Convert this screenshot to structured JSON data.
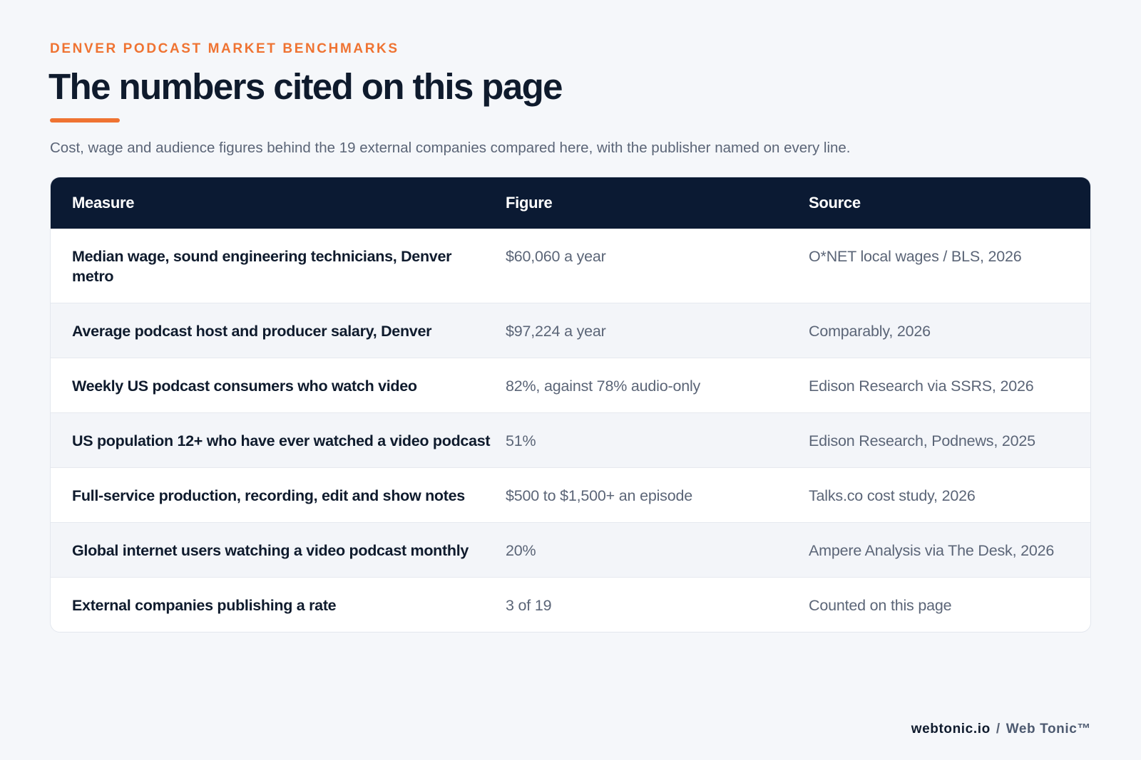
{
  "header": {
    "eyebrow": "DENVER PODCAST MARKET BENCHMARKS",
    "title": "The numbers cited on this page",
    "subtitle": "Cost, wage and audience figures behind the 19 external companies compared here, with the publisher named on every line."
  },
  "table": {
    "columns": [
      "Measure",
      "Figure",
      "Source"
    ],
    "rows": [
      {
        "measure": "Median wage, sound engineering technicians, Denver metro",
        "figure": "$60,060 a year",
        "source": "O*NET local wages / BLS, 2026"
      },
      {
        "measure": "Average podcast host and producer salary, Denver",
        "figure": "$97,224 a year",
        "source": "Comparably, 2026"
      },
      {
        "measure": "Weekly US podcast consumers who watch video",
        "figure": "82%, against 78% audio-only",
        "source": "Edison Research via SSRS, 2026"
      },
      {
        "measure": "US population 12+ who have ever watched a video podcast",
        "figure": "51%",
        "source": "Edison Research, Podnews, 2025"
      },
      {
        "measure": "Full-service production, recording, edit and show notes",
        "figure": "$500 to $1,500+ an episode",
        "source": "Talks.co cost study, 2026"
      },
      {
        "measure": "Global internet users watching a video podcast monthly",
        "figure": "20%",
        "source": "Ampere Analysis via The Desk, 2026"
      },
      {
        "measure": "External companies publishing a rate",
        "figure": "3 of 19",
        "source": "Counted on this page"
      }
    ]
  },
  "footer": {
    "domain": "webtonic.io",
    "separator": "/",
    "brand": "Web Tonic™"
  },
  "colors": {
    "accent": "#ef7332",
    "header_bg": "#0b1a33",
    "page_bg": "#f5f7fa",
    "row_alt": "#f3f5f9"
  }
}
